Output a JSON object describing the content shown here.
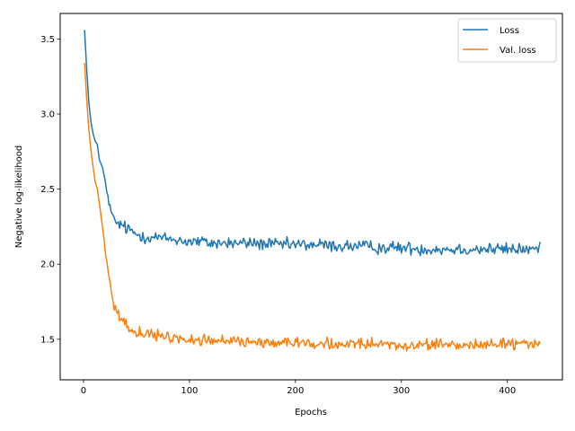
{
  "chart_data": {
    "type": "line",
    "title": "",
    "xlabel": "Epochs",
    "ylabel": "Negative log-likelihood",
    "xlim": [
      -22,
      452
    ],
    "ylim": [
      1.23,
      3.67
    ],
    "x_ticks": [
      0,
      100,
      200,
      300,
      400
    ],
    "y_ticks": [
      1.5,
      2.0,
      2.5,
      3.0,
      3.5
    ],
    "x_tick_labels": [
      "0",
      "100",
      "200",
      "300",
      "400"
    ],
    "y_tick_labels": [
      "1.5",
      "2.0",
      "2.5",
      "3.0",
      "3.5"
    ],
    "grid": false,
    "legend_position": "top-right",
    "series": [
      {
        "name": "Loss",
        "color": "#1f77b4",
        "points": [
          [
            1,
            3.56
          ],
          [
            3,
            3.3
          ],
          [
            5,
            3.08
          ],
          [
            7,
            2.95
          ],
          [
            9,
            2.87
          ],
          [
            11,
            2.82
          ],
          [
            13,
            2.8
          ],
          [
            15,
            2.69
          ],
          [
            17,
            2.66
          ],
          [
            19,
            2.61
          ],
          [
            21,
            2.52
          ],
          [
            23,
            2.45
          ],
          [
            25,
            2.38
          ],
          [
            27,
            2.32
          ],
          [
            30,
            2.28
          ],
          [
            33,
            2.27
          ],
          [
            36,
            2.26
          ],
          [
            40,
            2.24
          ],
          [
            45,
            2.22
          ],
          [
            50,
            2.2
          ],
          [
            55,
            2.19
          ],
          [
            60,
            2.18
          ],
          [
            65,
            2.18
          ],
          [
            70,
            2.18
          ],
          [
            75,
            2.17
          ],
          [
            80,
            2.17
          ],
          [
            90,
            2.16
          ],
          [
            100,
            2.15
          ],
          [
            110,
            2.15
          ],
          [
            120,
            2.14
          ],
          [
            140,
            2.14
          ],
          [
            160,
            2.14
          ],
          [
            180,
            2.13
          ],
          [
            200,
            2.13
          ],
          [
            220,
            2.13
          ],
          [
            240,
            2.12
          ],
          [
            260,
            2.12
          ],
          [
            280,
            2.11
          ],
          [
            300,
            2.11
          ],
          [
            320,
            2.1
          ],
          [
            340,
            2.1
          ],
          [
            360,
            2.1
          ],
          [
            380,
            2.1
          ],
          [
            400,
            2.1
          ],
          [
            420,
            2.1
          ],
          [
            431,
            2.1
          ]
        ],
        "noise": 0.03
      },
      {
        "name": "Val. loss",
        "color": "#ff7f0e",
        "points": [
          [
            1,
            3.34
          ],
          [
            3,
            3.1
          ],
          [
            5,
            2.9
          ],
          [
            7,
            2.76
          ],
          [
            9,
            2.65
          ],
          [
            11,
            2.55
          ],
          [
            13,
            2.5
          ],
          [
            15,
            2.4
          ],
          [
            17,
            2.3
          ],
          [
            19,
            2.18
          ],
          [
            21,
            2.06
          ],
          [
            23,
            1.96
          ],
          [
            25,
            1.88
          ],
          [
            27,
            1.79
          ],
          [
            29,
            1.73
          ],
          [
            31,
            1.69
          ],
          [
            33,
            1.66
          ],
          [
            36,
            1.63
          ],
          [
            40,
            1.6
          ],
          [
            45,
            1.57
          ],
          [
            50,
            1.55
          ],
          [
            55,
            1.54
          ],
          [
            60,
            1.53
          ],
          [
            70,
            1.52
          ],
          [
            80,
            1.51
          ],
          [
            100,
            1.5
          ],
          [
            120,
            1.49
          ],
          [
            140,
            1.49
          ],
          [
            160,
            1.48
          ],
          [
            180,
            1.48
          ],
          [
            200,
            1.48
          ],
          [
            220,
            1.47
          ],
          [
            240,
            1.47
          ],
          [
            260,
            1.47
          ],
          [
            280,
            1.46
          ],
          [
            300,
            1.46
          ],
          [
            320,
            1.46
          ],
          [
            340,
            1.46
          ],
          [
            360,
            1.46
          ],
          [
            380,
            1.47
          ],
          [
            400,
            1.47
          ],
          [
            420,
            1.47
          ],
          [
            431,
            1.46
          ]
        ],
        "noise": 0.025
      }
    ]
  }
}
